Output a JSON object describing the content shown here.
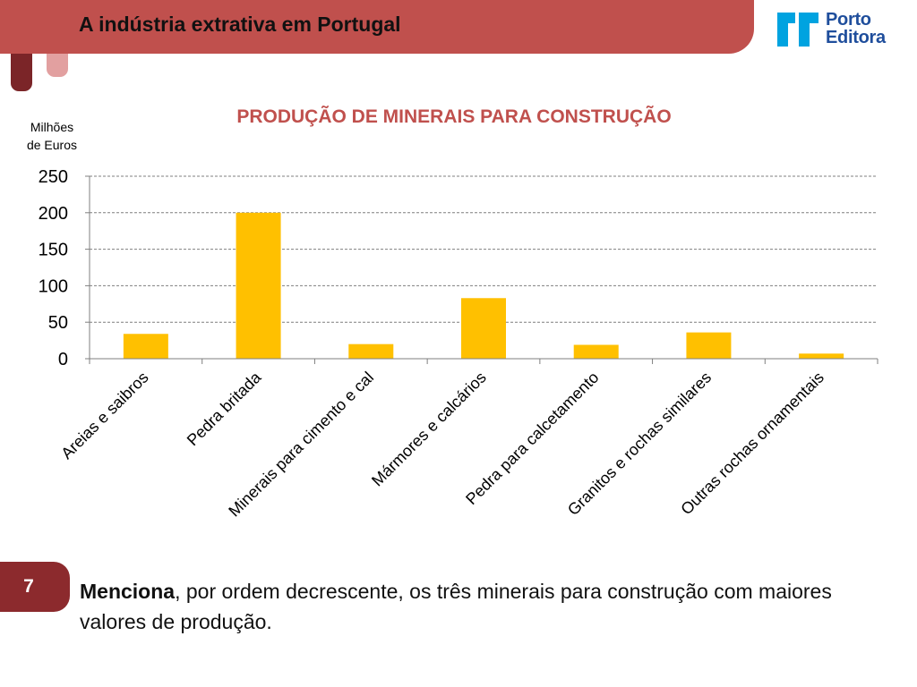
{
  "header": {
    "title": "A indústria extrativa em Portugal"
  },
  "logo": {
    "line1": "Porto",
    "line2": "Editora",
    "color": "#1f4e9c",
    "accent": "#00a3e0"
  },
  "colors": {
    "header_bar": "#c0504d",
    "deco_dark": "#7b2528",
    "deco_light": "#e2a0a0",
    "badge": "#8c2a2d",
    "title_red": "#c0504d",
    "bar": "#ffc000"
  },
  "chart_data": {
    "type": "bar",
    "title": "PRODUÇÃO DE MINERAIS PARA CONSTRUÇÃO",
    "ylabel_line1": "Milhões",
    "ylabel_line2": "de Euros",
    "ylim": [
      0,
      250
    ],
    "yticks": [
      0,
      50,
      100,
      150,
      200,
      250
    ],
    "grid": true,
    "categories": [
      "Areias e saibros",
      "Pedra britada",
      "Minerais para cimento e cal",
      "Mármores e calcários",
      "Pedra para calcetamento",
      "Granitos e rochas similares",
      "Outras rochas ornamentais"
    ],
    "values": [
      34,
      200,
      20,
      83,
      19,
      36,
      7
    ]
  },
  "page": {
    "number": "7"
  },
  "question": {
    "bold": "Menciona",
    "rest": ", por ordem decrescente, os três minerais para construção com maiores valores de produção."
  }
}
